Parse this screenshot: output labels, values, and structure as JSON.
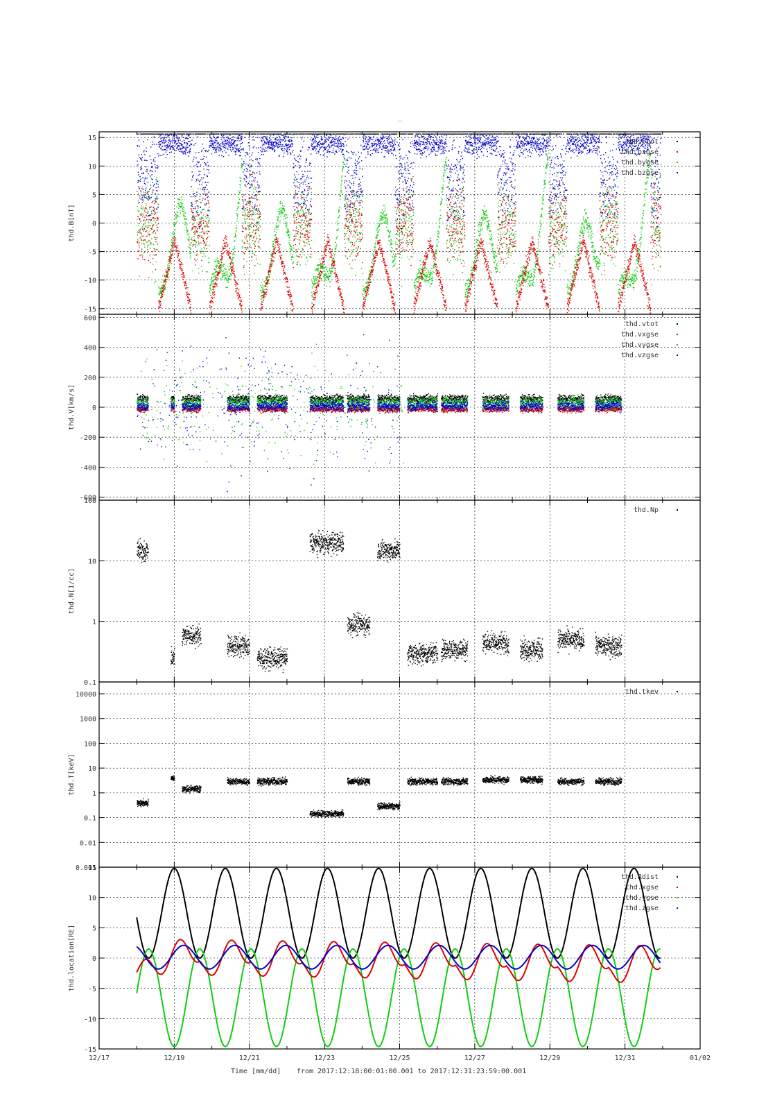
{
  "figure": {
    "title": "_",
    "footer": {
      "time_label": "Time [mm/dd]",
      "range_label": "from 2017:12:18:00:01:00.001  to  2017:12:31:23:59:00.001"
    }
  },
  "colors": {
    "black": "#000000",
    "red": "#dd0000",
    "green": "#11cc11",
    "blue": "#0000cc"
  },
  "x_axis": {
    "ticks": [
      "12/17",
      "12/19",
      "12/21",
      "12/23",
      "12/25",
      "12/27",
      "12/29",
      "12/31",
      "01/02"
    ],
    "start_date": "12/17",
    "end_date": "01/02"
  },
  "chart_data": [
    {
      "type": "scatter",
      "ylabel": "thd.B[nT]",
      "ylim": [
        -16,
        16
      ],
      "yticks": [
        "15",
        "10",
        "5",
        "0",
        "-5",
        "-10",
        "-15"
      ],
      "grid": true,
      "legend_position": "top-right",
      "series": [
        {
          "name": "thd.btot",
          "color": "black"
        },
        {
          "name": "thd.bxgse",
          "color": "red"
        },
        {
          "name": "thd.bygse",
          "color": "green"
        },
        {
          "name": "thd.bzgse",
          "color": "blue"
        }
      ]
    },
    {
      "type": "scatter",
      "ylabel": "thd.V[km/s]",
      "ylim": [
        -620,
        620
      ],
      "yticks": [
        "600",
        "400",
        "200",
        "0",
        "-200",
        "-400",
        "-600"
      ],
      "grid": true,
      "legend_position": "top-right",
      "series": [
        {
          "name": "thd.vtot",
          "color": "black"
        },
        {
          "name": "thd.vxgse",
          "color": "red"
        },
        {
          "name": "thd.vygse",
          "color": "green"
        },
        {
          "name": "thd.vzgse",
          "color": "blue"
        }
      ]
    },
    {
      "type": "scatter",
      "ylabel": "thd.N[1/cc]",
      "yscale": "log",
      "ylim": [
        0.1,
        100
      ],
      "yticks": [
        "100",
        "10",
        "1",
        "0.1"
      ],
      "grid": true,
      "legend_position": "top-right",
      "series": [
        {
          "name": "thd.Np",
          "color": "black"
        }
      ]
    },
    {
      "type": "scatter",
      "ylabel": "thd.T[keV]",
      "yscale": "log",
      "ylim": [
        0.001,
        30000
      ],
      "yticks": [
        "10000",
        "1000",
        "100",
        "10",
        "1",
        "0.1",
        "0.01",
        "0.001"
      ],
      "grid": true,
      "legend_position": "top-right",
      "series": [
        {
          "name": "thd.tkev",
          "color": "black"
        }
      ]
    },
    {
      "type": "line",
      "ylabel": "thd.location[RE]",
      "ylim": [
        -15,
        15
      ],
      "yticks": [
        "15",
        "10",
        "5",
        "0",
        "-5",
        "-10",
        "-15"
      ],
      "grid": true,
      "legend_position": "top-right",
      "series": [
        {
          "name": "thd.Rdist",
          "color": "black",
          "orbit_period_days": 1.36,
          "peak_days": [
            19.0,
            20.36,
            21.72,
            23.08,
            24.44,
            25.8,
            27.16,
            28.52,
            29.88,
            31.24
          ],
          "max": 14.8,
          "min": 0.0
        },
        {
          "name": "thd.xgse",
          "color": "red",
          "max_start": 3.5,
          "max_end": 2.4,
          "min_start": -4.2,
          "min_end": -5.8
        },
        {
          "name": "thd.ygse",
          "color": "green",
          "max": 1.5,
          "min": -14.6
        },
        {
          "name": "thd.zgse",
          "color": "blue",
          "max": 2.1,
          "min": -1.8
        }
      ]
    }
  ]
}
